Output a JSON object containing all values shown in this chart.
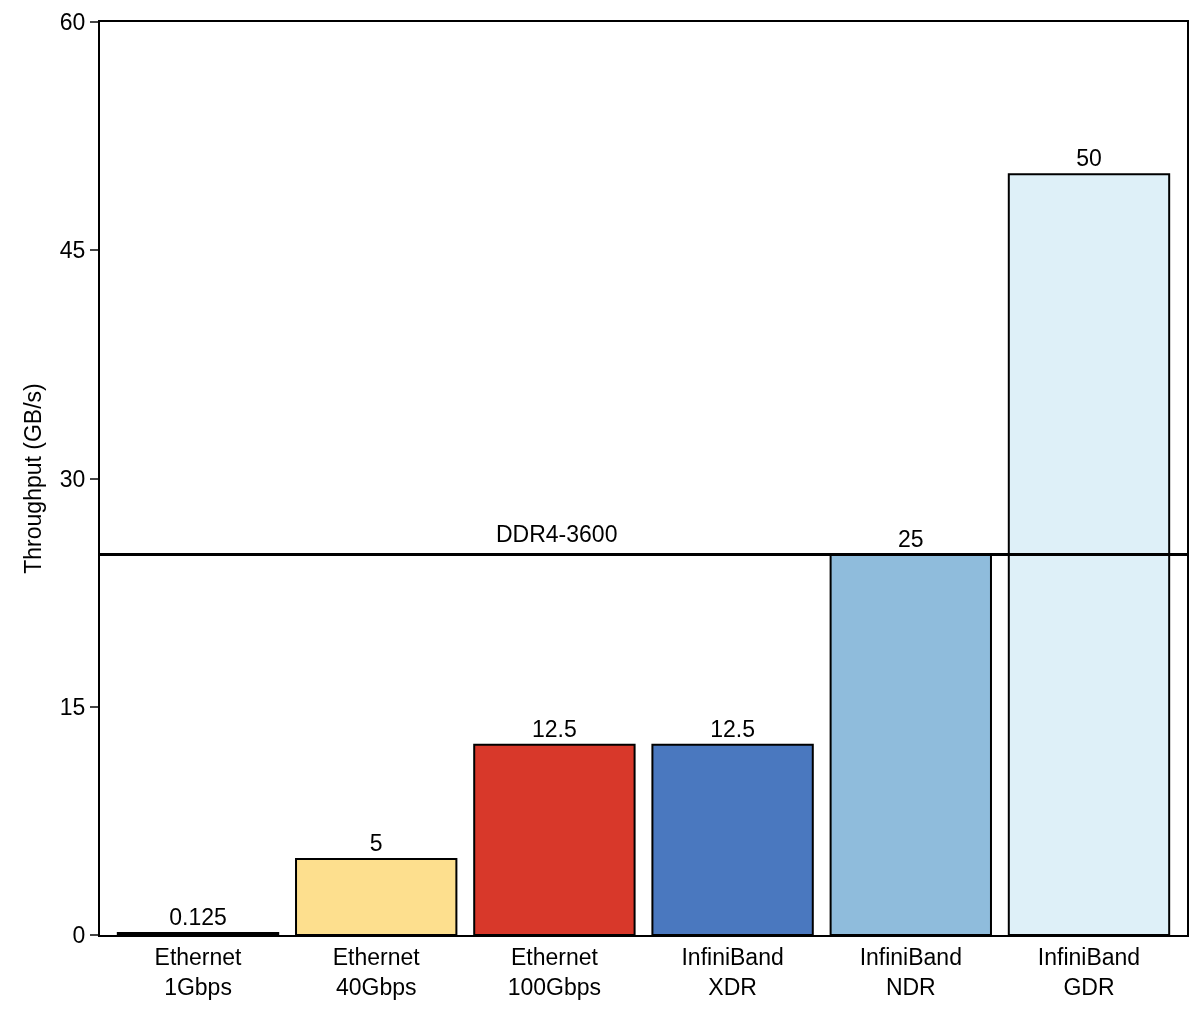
{
  "chart_data": {
    "type": "bar",
    "ylabel": "Throughput (GB/s)",
    "categories": [
      "Ethernet\n1Gbps",
      "Ethernet\n40Gbps",
      "Ethernet\n100Gbps",
      "InfiniBand\nXDR",
      "InfiniBand\nNDR",
      "InfiniBand\nGDR"
    ],
    "values": [
      0.125,
      5,
      12.5,
      12.5,
      25,
      50
    ],
    "colors": [
      "#ffffff",
      "#fddf8e",
      "#d8382a",
      "#4a78bf",
      "#8fbcdc",
      "#def0f8"
    ],
    "ylim": [
      0,
      60
    ],
    "yticks": [
      0,
      15,
      30,
      45,
      60
    ],
    "grid": false,
    "data_labels": true,
    "ref_lines": [
      {
        "axis": "y",
        "value": 25,
        "label": "DDR4-3600",
        "color": "#000000"
      }
    ]
  }
}
